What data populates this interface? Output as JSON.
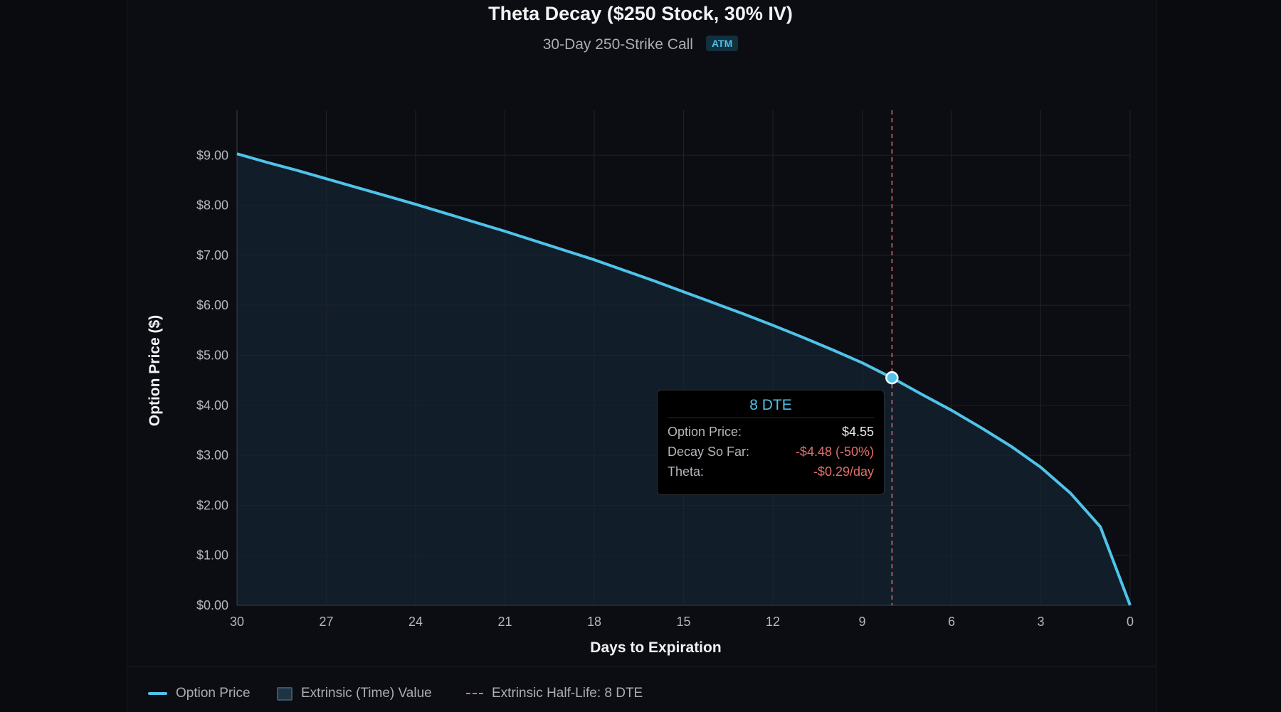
{
  "title": "Theta Decay ($250 Stock, 30% IV)",
  "subtitle": "30-Day 250-Strike Call",
  "badge": "ATM",
  "colors": {
    "line": "#4fc3ea",
    "fill": "#12202c",
    "halflife": "#e0706c",
    "grid": "#1e222a"
  },
  "chart_data": {
    "type": "area",
    "title": "Theta Decay ($250 Stock, 30% IV)",
    "xlabel": "Days to Expiration",
    "ylabel": "Option Price ($)",
    "xlim": [
      30,
      0
    ],
    "ylim": [
      0,
      9.9
    ],
    "x_reversed": true,
    "grid": true,
    "xticks": [
      "30",
      "27",
      "24",
      "21",
      "18",
      "15",
      "12",
      "9",
      "6",
      "3",
      "0"
    ],
    "yticks": [
      "$0.00",
      "$1.00",
      "$2.00",
      "$3.00",
      "$4.00",
      "$5.00",
      "$6.00",
      "$7.00",
      "$8.00",
      "$9.00"
    ],
    "series": [
      {
        "name": "Option Price",
        "x": [
          30,
          29,
          28,
          27,
          26,
          25,
          24,
          23,
          22,
          21,
          20,
          19,
          18,
          17,
          16,
          15,
          14,
          13,
          12,
          11,
          10,
          9,
          8,
          7,
          6,
          5,
          4,
          3,
          2,
          1,
          0
        ],
        "values": [
          9.03,
          8.86,
          8.7,
          8.53,
          8.36,
          8.19,
          8.02,
          7.84,
          7.66,
          7.48,
          7.29,
          7.1,
          6.91,
          6.7,
          6.49,
          6.27,
          6.05,
          5.83,
          5.6,
          5.36,
          5.11,
          4.85,
          4.55,
          4.22,
          3.9,
          3.55,
          3.18,
          2.76,
          2.24,
          1.57,
          0
        ]
      }
    ],
    "reference_line": {
      "x": 8,
      "label": "Extrinsic Half-Life: 8 DTE"
    },
    "legend": {
      "placement": "bottom-left",
      "entries": [
        "Option Price",
        "Extrinsic (Time) Value",
        "Extrinsic Half-Life: 8 DTE"
      ]
    },
    "tooltip": {
      "title": "8 DTE",
      "x": 8,
      "rows": [
        {
          "label": "Option Price:",
          "value": "$4.55"
        },
        {
          "label": "Decay So Far:",
          "value": "-$4.48 (-50%)"
        },
        {
          "label": "Theta:",
          "value": "-$0.29/day"
        }
      ]
    }
  }
}
